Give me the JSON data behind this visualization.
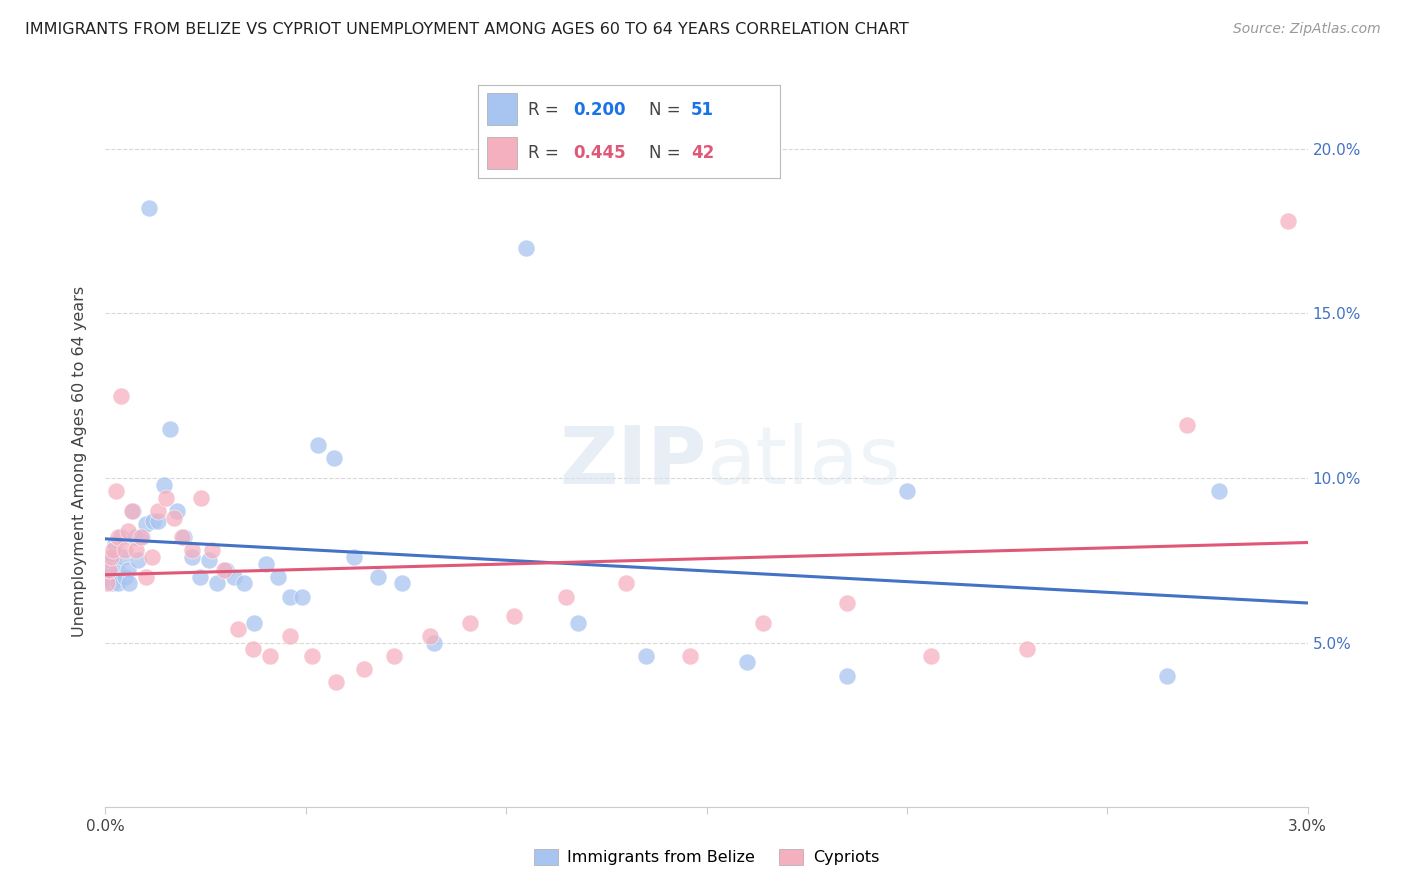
{
  "title": "IMMIGRANTS FROM BELIZE VS CYPRIOT UNEMPLOYMENT AMONG AGES 60 TO 64 YEARS CORRELATION CHART",
  "source": "Source: ZipAtlas.com",
  "ylabel": "Unemployment Among Ages 60 to 64 years",
  "xmin": 0.0,
  "xmax": 0.03,
  "ymin": 0.0,
  "ymax": 0.21,
  "xtick_positions": [
    0.0,
    0.005,
    0.01,
    0.015,
    0.02,
    0.025,
    0.03
  ],
  "xtick_labels": [
    "0.0%",
    "",
    "",
    "",
    "",
    "",
    "3.0%"
  ],
  "ytick_positions": [
    0.0,
    0.05,
    0.1,
    0.15,
    0.2
  ],
  "ytick_labels_right": [
    "",
    "5.0%",
    "10.0%",
    "15.0%",
    "20.0%"
  ],
  "legend_belize_R": "0.200",
  "legend_belize_N": "51",
  "legend_cypriot_R": "0.445",
  "legend_cypriot_N": "42",
  "blue_dot_color": "#a8c4f0",
  "blue_line_color": "#4472c4",
  "pink_dot_color": "#f5b0c0",
  "pink_line_color": "#e05878",
  "legend_blue_color": "#1a73e8",
  "legend_pink_color": "#e05878",
  "background_color": "#ffffff",
  "grid_color": "#d8d8d8",
  "title_color": "#222222",
  "belize_x": [
    4e-05,
    8e-05,
    0.00012,
    0.00016,
    0.0002,
    0.00024,
    0.00028,
    0.00032,
    0.00038,
    0.00044,
    0.0005,
    0.00056,
    0.0006,
    0.00068,
    0.00074,
    0.00082,
    0.0009,
    0.001,
    0.00108,
    0.00118,
    0.0013,
    0.00145,
    0.0016,
    0.00178,
    0.00195,
    0.00215,
    0.00235,
    0.00258,
    0.00278,
    0.003,
    0.0032,
    0.00345,
    0.0037,
    0.004,
    0.0043,
    0.0046,
    0.0049,
    0.0053,
    0.0057,
    0.0062,
    0.0068,
    0.0074,
    0.0082,
    0.0105,
    0.0118,
    0.0135,
    0.016,
    0.0185,
    0.02,
    0.0265,
    0.0278
  ],
  "belize_y": [
    0.07,
    0.072,
    0.075,
    0.068,
    0.076,
    0.08,
    0.072,
    0.068,
    0.082,
    0.076,
    0.07,
    0.072,
    0.068,
    0.09,
    0.082,
    0.075,
    0.082,
    0.086,
    0.182,
    0.087,
    0.087,
    0.098,
    0.115,
    0.09,
    0.082,
    0.076,
    0.07,
    0.075,
    0.068,
    0.072,
    0.07,
    0.068,
    0.056,
    0.074,
    0.07,
    0.064,
    0.064,
    0.11,
    0.106,
    0.076,
    0.07,
    0.068,
    0.05,
    0.17,
    0.056,
    0.046,
    0.044,
    0.04,
    0.096,
    0.04,
    0.096
  ],
  "cypriot_x": [
    4e-05,
    8e-05,
    0.00014,
    0.0002,
    0.00026,
    0.00032,
    0.0004,
    0.00048,
    0.00056,
    0.00066,
    0.00076,
    0.00088,
    0.001,
    0.00115,
    0.00132,
    0.0015,
    0.0017,
    0.00192,
    0.00215,
    0.00238,
    0.00265,
    0.00295,
    0.0033,
    0.00368,
    0.0041,
    0.0046,
    0.00515,
    0.00575,
    0.00645,
    0.0072,
    0.0081,
    0.0091,
    0.0102,
    0.0115,
    0.013,
    0.0146,
    0.0164,
    0.0185,
    0.0206,
    0.023,
    0.027,
    0.0295
  ],
  "cypriot_y": [
    0.068,
    0.072,
    0.076,
    0.078,
    0.096,
    0.082,
    0.125,
    0.078,
    0.084,
    0.09,
    0.078,
    0.082,
    0.07,
    0.076,
    0.09,
    0.094,
    0.088,
    0.082,
    0.078,
    0.094,
    0.078,
    0.072,
    0.054,
    0.048,
    0.046,
    0.052,
    0.046,
    0.038,
    0.042,
    0.046,
    0.052,
    0.056,
    0.058,
    0.064,
    0.068,
    0.046,
    0.056,
    0.062,
    0.046,
    0.048,
    0.116,
    0.178
  ]
}
